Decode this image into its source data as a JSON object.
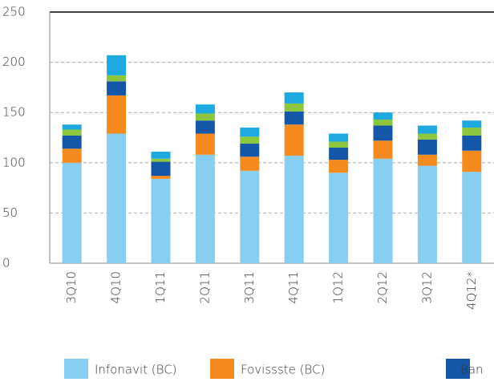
{
  "chart_data": {
    "type": "stacked_bar",
    "categories": [
      "3Q10",
      "4Q10",
      "1Q11",
      "2Q11",
      "3Q11",
      "4Q11",
      "1Q12",
      "2Q12",
      "3Q12",
      "4Q12*"
    ],
    "series": [
      {
        "name": "Infonavit (BC)",
        "color": "#87cef0",
        "values": [
          100,
          129,
          84,
          108,
          92,
          107,
          90,
          104,
          97,
          91
        ]
      },
      {
        "name": "Fovissste (BC)",
        "color": "#f58a1f",
        "values": [
          14,
          38,
          3,
          21,
          14,
          31,
          13,
          18,
          11,
          21
        ]
      },
      {
        "name": "Ban",
        "color": "#1457a8",
        "values": [
          13,
          14,
          14,
          13,
          13,
          13,
          12,
          15,
          15,
          15
        ]
      },
      {
        "color": "#8dc63f",
        "values": [
          6,
          6,
          3,
          7,
          7,
          8,
          6,
          6,
          6,
          8
        ]
      },
      {
        "color": "#1ea8e0",
        "values": [
          5,
          20,
          7,
          9,
          9,
          11,
          8,
          7,
          8,
          7
        ]
      }
    ],
    "ylim": [
      0,
      250
    ],
    "yticks": [
      0,
      50,
      100,
      150,
      200,
      250
    ],
    "grid": true
  }
}
